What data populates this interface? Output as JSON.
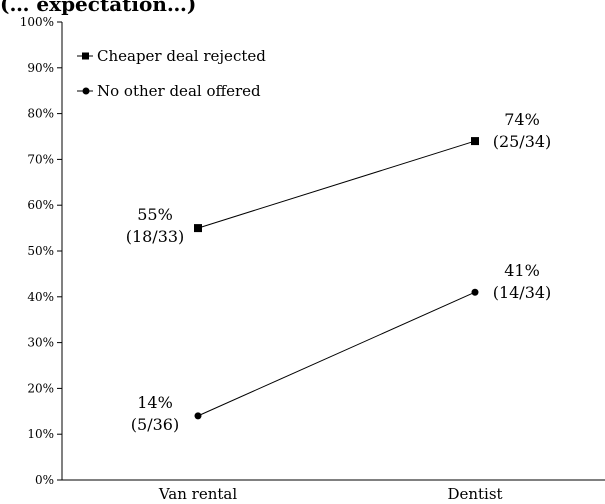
{
  "chart_data": {
    "type": "line",
    "title": "(… expectation…)",
    "categories": [
      "Van rental",
      "Dentist"
    ],
    "ylim": [
      0,
      100
    ],
    "y_ticks": [
      "0%",
      "10%",
      "20%",
      "30%",
      "40%",
      "50%",
      "60%",
      "70%",
      "80%",
      "90%",
      "100%"
    ],
    "legend_position": "top-left",
    "grid": false,
    "series": [
      {
        "name": "Cheaper deal rejected",
        "marker": "square",
        "values": [
          55,
          74
        ],
        "labels": [
          {
            "pct": "55%",
            "frac": "(18/33)"
          },
          {
            "pct": "74%",
            "frac": "(25/34)"
          }
        ]
      },
      {
        "name": "No other deal offered",
        "marker": "circle",
        "values": [
          14,
          41
        ],
        "labels": [
          {
            "pct": "14%",
            "frac": "(5/36)"
          },
          {
            "pct": "41%",
            "frac": "(14/34)"
          }
        ]
      }
    ]
  }
}
